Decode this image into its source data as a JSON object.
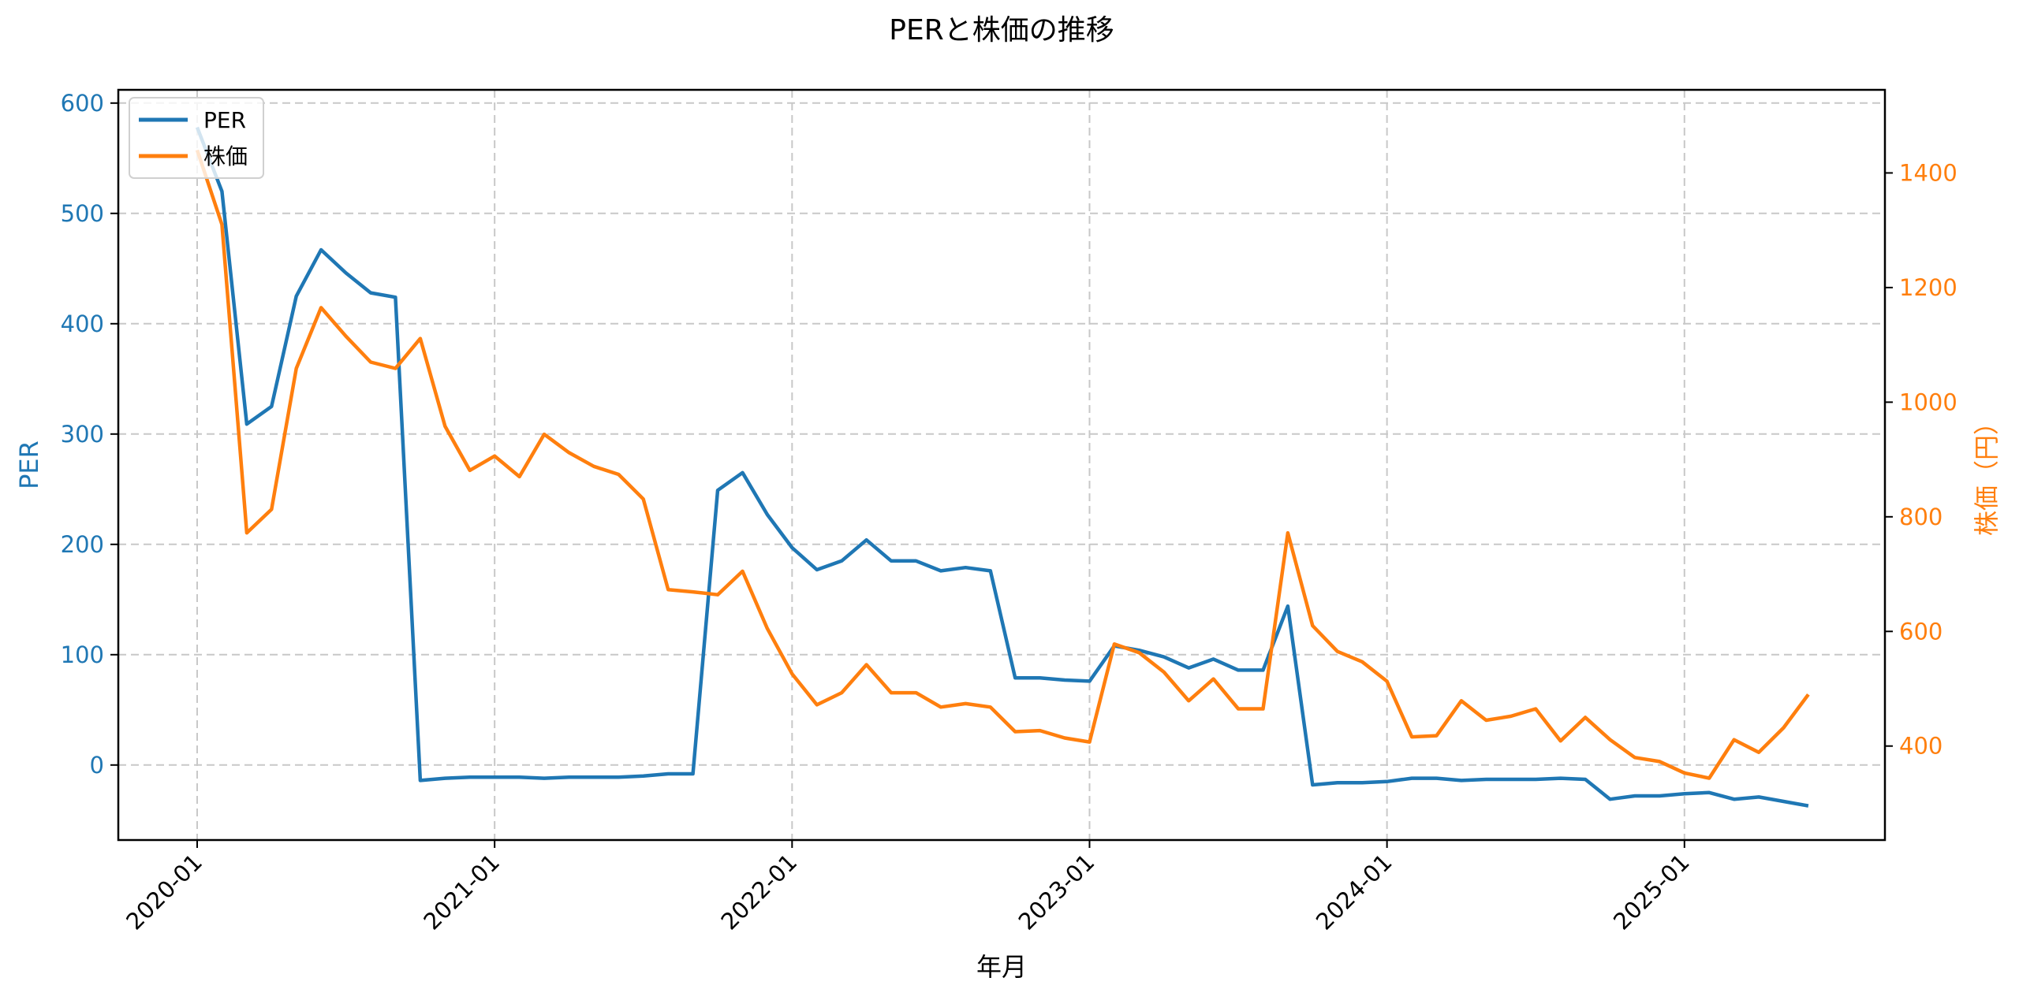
{
  "chart_data": {
    "type": "line",
    "title": "PERと株価の推移",
    "xlabel": "年月",
    "ylabel_left": "PER",
    "ylabel_right": "株価（円）",
    "x_ticks": [
      "2020-01",
      "2021-01",
      "2022-01",
      "2023-01",
      "2024-01",
      "2025-01"
    ],
    "y_left_ticks": [
      0,
      100,
      200,
      300,
      400,
      500,
      600
    ],
    "y_right_ticks": [
      400,
      600,
      800,
      1000,
      1200,
      1400
    ],
    "y_left_range": [
      -68,
      612
    ],
    "y_right_range": [
      236,
      1545
    ],
    "grid": true,
    "legend_position": "upper left",
    "x": [
      "2020-01",
      "2020-02",
      "2020-03",
      "2020-04",
      "2020-05",
      "2020-06",
      "2020-07",
      "2020-08",
      "2020-09",
      "2020-10",
      "2020-11",
      "2020-12",
      "2021-01",
      "2021-02",
      "2021-03",
      "2021-04",
      "2021-05",
      "2021-06",
      "2021-07",
      "2021-08",
      "2021-09",
      "2021-10",
      "2021-11",
      "2021-12",
      "2022-01",
      "2022-02",
      "2022-03",
      "2022-04",
      "2022-05",
      "2022-06",
      "2022-07",
      "2022-08",
      "2022-09",
      "2022-10",
      "2022-11",
      "2022-12",
      "2023-01",
      "2023-02",
      "2023-03",
      "2023-04",
      "2023-05",
      "2023-06",
      "2023-07",
      "2023-08",
      "2023-09",
      "2023-10",
      "2023-11",
      "2023-12",
      "2024-01",
      "2024-02",
      "2024-03",
      "2024-04",
      "2024-05",
      "2024-06",
      "2024-07",
      "2024-08",
      "2024-09",
      "2024-10",
      "2024-11",
      "2024-12",
      "2025-01",
      "2025-02",
      "2025-03",
      "2025-04",
      "2025-05",
      "2025-06"
    ],
    "series": [
      {
        "name": "PER",
        "axis": "left",
        "color": "#1f77b4",
        "values": [
          578,
          520,
          309,
          325,
          425,
          467,
          446,
          428,
          424,
          -14,
          -12,
          -11,
          -11,
          -11,
          -12,
          -11,
          -11,
          -11,
          -10,
          -8,
          -8,
          249,
          265,
          227,
          197,
          177,
          185,
          204,
          185,
          185,
          176,
          179,
          176,
          79,
          79,
          77,
          76,
          108,
          104,
          98,
          88,
          96,
          86,
          86,
          144,
          -18,
          -16,
          -16,
          -15,
          -12,
          -12,
          -14,
          -13,
          -13,
          -13,
          -12,
          -13,
          -31,
          -28,
          -28,
          -26,
          -25,
          -31,
          -29,
          -33,
          -37
        ]
      },
      {
        "name": "株価",
        "axis": "right",
        "color": "#ff7f0e",
        "values": [
          1440,
          1310,
          772,
          813,
          1059,
          1165,
          1115,
          1070,
          1059,
          1111,
          958,
          881,
          906,
          870,
          944,
          912,
          888,
          874,
          831,
          673,
          669,
          664,
          705,
          605,
          526,
          472,
          493,
          542,
          493,
          493,
          468,
          474,
          468,
          425,
          427,
          414,
          407,
          578,
          563,
          529,
          479,
          517,
          465,
          465,
          772,
          610,
          565,
          547,
          513,
          416,
          418,
          479,
          445,
          452,
          465,
          409,
          450,
          411,
          380,
          373,
          353,
          344,
          411,
          389,
          432,
          490
        ]
      }
    ]
  },
  "legend": {
    "items": [
      {
        "label": "PER",
        "color": "#1f77b4"
      },
      {
        "label": "株価",
        "color": "#ff7f0e"
      }
    ]
  },
  "colors": {
    "left_axis": "#1f77b4",
    "right_axis": "#ff7f0e",
    "grid": "#c8c8c8"
  }
}
